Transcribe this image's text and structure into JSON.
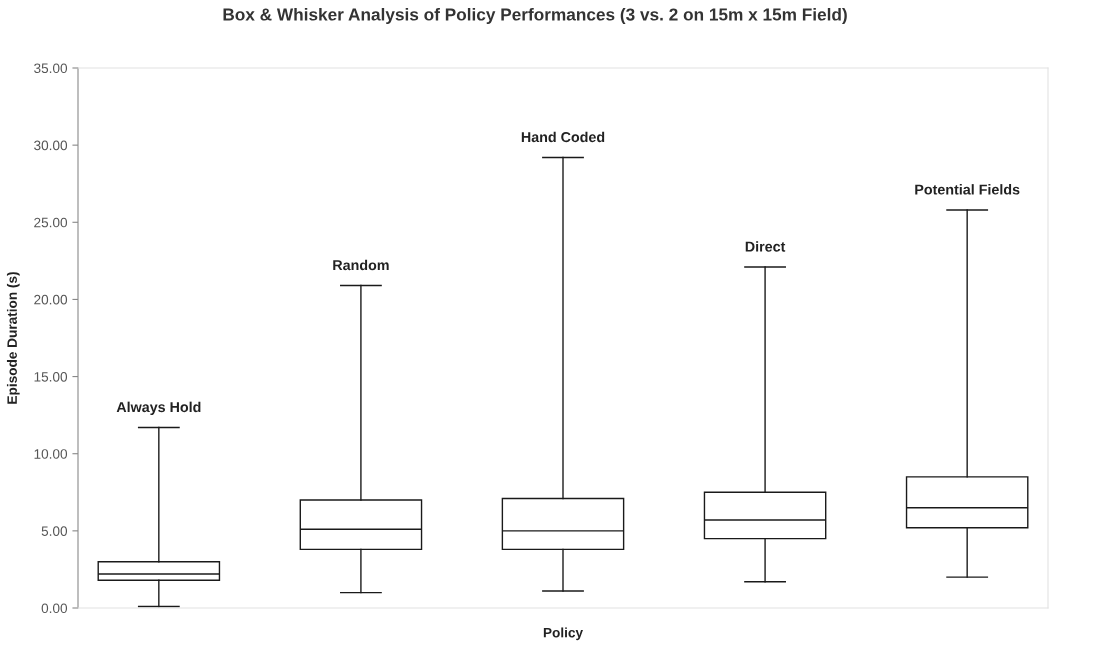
{
  "chart_data": {
    "type": "box",
    "title": "Box & Whisker Analysis of Policy Performances (3 vs. 2 on 15m x 15m Field)",
    "xlabel": "Policy",
    "ylabel": "Episode Duration (s)",
    "categories": [
      "Always Hold",
      "Random",
      "Hand Coded",
      "Direct",
      "Potential Fields"
    ],
    "series": [
      {
        "color": "#1a1a1a",
        "boxes": [
          {
            "low": 0.1,
            "q1": 1.8,
            "median": 2.2,
            "q3": 3.0,
            "high": 11.7
          },
          {
            "low": 1.0,
            "q1": 3.8,
            "median": 5.1,
            "q3": 7.0,
            "high": 20.9
          },
          {
            "low": 1.1,
            "q1": 3.8,
            "median": 5.0,
            "q3": 7.1,
            "high": 29.2
          },
          {
            "low": 1.7,
            "q1": 4.5,
            "median": 5.7,
            "q3": 7.5,
            "high": 22.1
          },
          {
            "low": 2.0,
            "q1": 5.2,
            "median": 6.5,
            "q3": 8.5,
            "high": 25.8
          }
        ]
      }
    ],
    "ylim": [
      0,
      35
    ],
    "yticks": [
      {
        "value": 0,
        "label": "0.00"
      },
      {
        "value": 5,
        "label": "5.00"
      },
      {
        "value": 10,
        "label": "10.00"
      },
      {
        "value": 15,
        "label": "15.00"
      },
      {
        "value": 20,
        "label": "20.00"
      },
      {
        "value": 25,
        "label": "25.00"
      },
      {
        "value": 30,
        "label": "30.00"
      },
      {
        "value": 35,
        "label": "35.00"
      }
    ],
    "tick_labels": "y",
    "grid": false
  }
}
